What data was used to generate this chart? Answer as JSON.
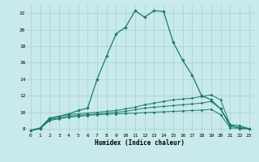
{
  "xlabel": "Humidex (Indice chaleur)",
  "bg_color": "#c8eaea",
  "grid_color": "#aacece",
  "line_color": "#1a7a6a",
  "xlim": [
    -0.5,
    23.5
  ],
  "ylim": [
    7.5,
    23.0
  ],
  "yticks": [
    8,
    10,
    12,
    14,
    16,
    18,
    20,
    22
  ],
  "xticks": [
    0,
    1,
    2,
    3,
    4,
    5,
    6,
    7,
    8,
    9,
    10,
    11,
    12,
    13,
    14,
    15,
    16,
    17,
    18,
    19,
    20,
    21,
    22,
    23
  ],
  "line1_x": [
    0,
    1,
    2,
    3,
    4,
    5,
    6,
    7,
    8,
    9,
    10,
    11,
    12,
    13,
    14,
    15,
    16,
    17,
    18,
    19,
    20,
    21,
    22,
    23
  ],
  "line1_y": [
    7.8,
    8.1,
    9.3,
    9.5,
    9.8,
    10.2,
    10.5,
    14.0,
    16.8,
    19.5,
    20.3,
    22.3,
    21.5,
    22.3,
    22.2,
    18.5,
    16.3,
    14.5,
    12.0,
    11.5,
    10.4,
    8.5,
    8.0,
    8.0
  ],
  "line2_x": [
    0,
    1,
    2,
    3,
    4,
    5,
    6,
    7,
    8,
    9,
    10,
    11,
    12,
    13,
    14,
    15,
    16,
    17,
    18,
    19,
    20,
    21,
    22,
    23
  ],
  "line2_y": [
    7.8,
    8.0,
    9.2,
    9.5,
    9.7,
    9.8,
    9.9,
    10.0,
    10.1,
    10.2,
    10.4,
    10.6,
    10.9,
    11.1,
    11.3,
    11.5,
    11.6,
    11.7,
    11.9,
    12.1,
    11.5,
    8.5,
    8.4,
    8.0
  ],
  "line3_x": [
    0,
    1,
    2,
    3,
    4,
    5,
    6,
    7,
    8,
    9,
    10,
    11,
    12,
    13,
    14,
    15,
    16,
    17,
    18,
    19,
    20,
    21,
    22,
    23
  ],
  "line3_y": [
    7.8,
    8.0,
    9.1,
    9.3,
    9.5,
    9.6,
    9.7,
    9.8,
    9.9,
    10.0,
    10.1,
    10.3,
    10.5,
    10.6,
    10.7,
    10.8,
    10.9,
    11.0,
    11.1,
    11.3,
    10.4,
    8.3,
    8.2,
    8.0
  ],
  "line4_x": [
    0,
    1,
    2,
    3,
    4,
    5,
    6,
    7,
    8,
    9,
    10,
    11,
    12,
    13,
    14,
    15,
    16,
    17,
    18,
    19,
    20,
    21,
    22,
    23
  ],
  "line4_y": [
    7.8,
    8.0,
    9.0,
    9.2,
    9.4,
    9.5,
    9.6,
    9.7,
    9.75,
    9.8,
    9.85,
    9.9,
    9.95,
    10.0,
    10.05,
    10.1,
    10.15,
    10.2,
    10.25,
    10.35,
    9.7,
    8.1,
    8.05,
    8.0
  ]
}
